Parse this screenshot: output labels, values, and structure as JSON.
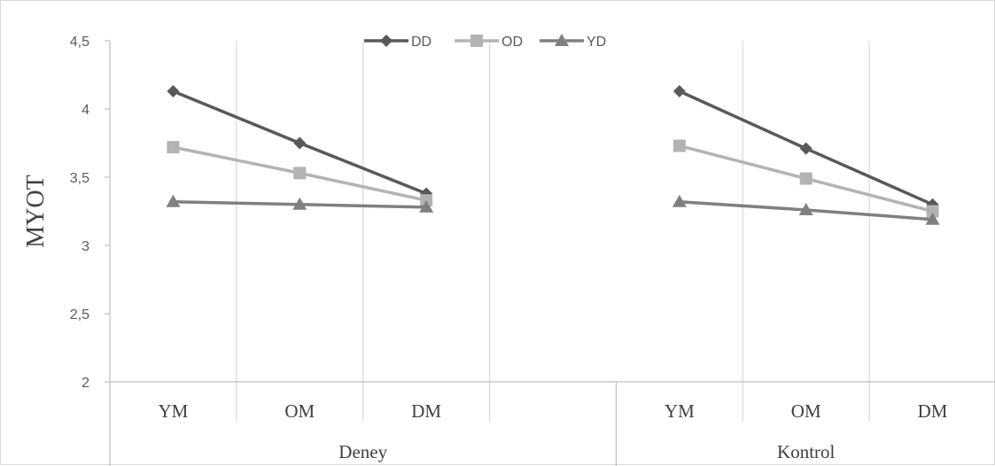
{
  "chart_data": {
    "type": "line",
    "ylabel": "MYOT",
    "ylim": [
      2,
      4.5
    ],
    "yticks": [
      "2",
      "2,5",
      "3",
      "3,5",
      "4",
      "4,5"
    ],
    "grid": "vertical",
    "legend_position": "top-center",
    "groups": [
      {
        "name": "Deney",
        "categories": [
          "YM",
          "OM",
          "DM",
          ""
        ]
      },
      {
        "name": "Kontrol",
        "categories": [
          "YM",
          "OM",
          "DM"
        ]
      }
    ],
    "series": [
      {
        "name": "DD",
        "marker": "diamond",
        "color": "#595959",
        "values": [
          [
            4.13,
            3.75,
            3.38
          ],
          [
            4.13,
            3.71,
            3.3
          ]
        ]
      },
      {
        "name": "OD",
        "marker": "square",
        "color": "#b3b3b3",
        "values": [
          [
            3.72,
            3.53,
            3.33
          ],
          [
            3.73,
            3.49,
            3.25
          ]
        ]
      },
      {
        "name": "YD",
        "marker": "triangle",
        "color": "#808080",
        "values": [
          [
            3.32,
            3.3,
            3.28
          ],
          [
            3.32,
            3.26,
            3.19
          ]
        ]
      }
    ]
  }
}
